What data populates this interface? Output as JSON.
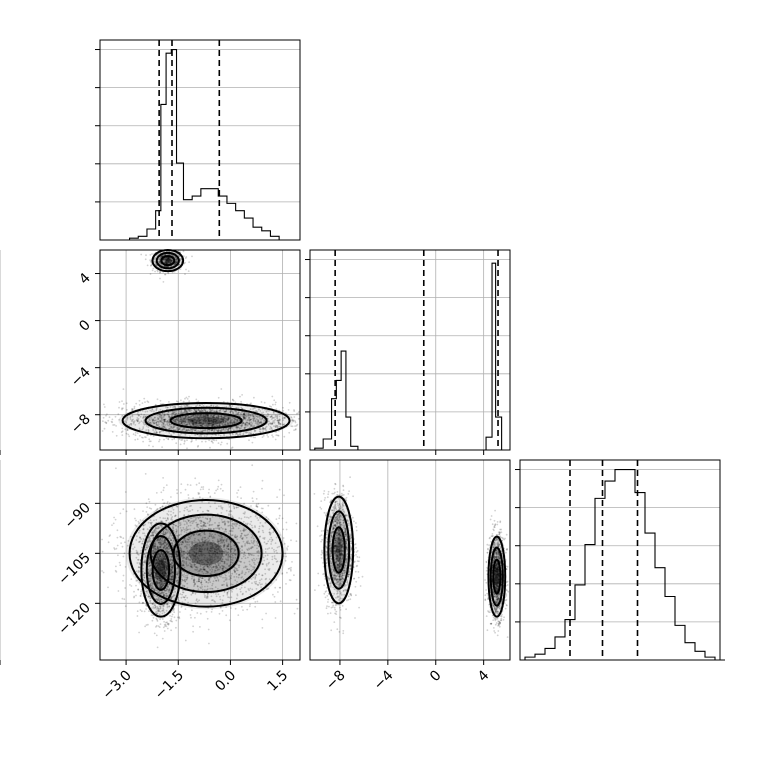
{
  "chart_data": [
    {
      "panel": "hist-1",
      "type": "bar",
      "xlim": [
        -3.75,
        2.0
      ],
      "bins": [
        -2.9,
        -2.65,
        -2.4,
        -2.15,
        -2.0,
        -1.85,
        -1.7,
        -1.55,
        -1.35,
        -1.1,
        -0.85,
        -0.6,
        -0.35,
        -0.1,
        0.15,
        0.4,
        0.65,
        0.9,
        1.15,
        1.4
      ],
      "counts": [
        0.5,
        1,
        3,
        8,
        37,
        51,
        52,
        21,
        11,
        12,
        14,
        14,
        12,
        10,
        8,
        6,
        3.5,
        2.5,
        1,
        0
      ],
      "ymax": 52,
      "quantiles": [
        -2.05,
        -1.68,
        -0.32
      ],
      "grid": true
    },
    {
      "panel": "hist-2",
      "type": "bar",
      "xlim": [
        -10.5,
        6.2
      ],
      "edges": [
        -10.1,
        -9.4,
        -8.7,
        -8.3,
        -7.9,
        -7.5,
        -7.1,
        -6.5,
        -5.8,
        4.2,
        4.7,
        5.0,
        5.5,
        6.2
      ],
      "counts": [
        0.5,
        3,
        14,
        19,
        27,
        9,
        1,
        0,
        0,
        3.5,
        51,
        9,
        0
      ],
      "ymax": 52,
      "quantiles": [
        -8.4,
        -1.0,
        5.2
      ],
      "ticks": [
        -8,
        -4,
        0,
        4
      ],
      "tick_labels": [
        "−8",
        "−4",
        "0",
        "4"
      ],
      "grid": true
    },
    {
      "panel": "hist-3",
      "type": "bar",
      "xlim": [
        -127,
        -87
      ],
      "bins": [
        -126,
        -124,
        -122,
        -120,
        -118,
        -116,
        -114,
        -112,
        -110,
        -108,
        -106,
        -104,
        -102,
        -100,
        -98,
        -96,
        -94,
        -92,
        -90,
        -88
      ],
      "counts": [
        0.5,
        1,
        2,
        4,
        7,
        13,
        20,
        28,
        31,
        33,
        33,
        29,
        22,
        16,
        11,
        6,
        3,
        1.5,
        0.5,
        0
      ],
      "ymax": 33,
      "quantiles": [
        -117,
        -110.5,
        -103.5
      ],
      "ticks": [
        -120,
        -105,
        -90
      ],
      "tick_labels": [
        "−120",
        "−105",
        "−90"
      ],
      "grid": true
    },
    {
      "panel": "scatter-2-vs-1",
      "type": "scatter",
      "xlim": [
        -3.75,
        2.0
      ],
      "ylim": [
        -11.0,
        6.0
      ],
      "x_ticks": [
        -3.0,
        -1.5,
        0.0,
        1.5
      ],
      "y_ticks": [
        -8,
        -4,
        0,
        4
      ],
      "y_tick_labels": [
        "−8",
        "−4",
        "0",
        "4"
      ],
      "clusters": [
        {
          "cx": -1.8,
          "cy": 5.1,
          "sx": 0.22,
          "sy": 0.45,
          "n": 600
        },
        {
          "cx": -0.7,
          "cy": -8.5,
          "sx": 1.2,
          "sy": 0.75,
          "n": 2200
        }
      ],
      "grid": true
    },
    {
      "panel": "scatter-3-vs-1",
      "type": "scatter",
      "xlim": [
        -3.75,
        2.0
      ],
      "ylim": [
        -137,
        -77
      ],
      "x_ticks": [
        -3.0,
        -1.5,
        0.0,
        1.5
      ],
      "x_tick_labels": [
        "−3.0",
        "−1.5",
        "0.0",
        "1.5"
      ],
      "y_ticks": [
        -120,
        -105,
        -90
      ],
      "y_tick_labels": [
        "−120",
        "−105",
        "−90"
      ],
      "clusters": [
        {
          "cx": -2.0,
          "cy": -110,
          "sx": 0.28,
          "sy": 7,
          "n": 1600
        },
        {
          "cx": -0.7,
          "cy": -105,
          "sx": 1.1,
          "sy": 8,
          "n": 2200
        }
      ],
      "grid": true
    },
    {
      "panel": "scatter-3-vs-2",
      "type": "scatter",
      "xlim": [
        -10.5,
        6.2
      ],
      "ylim": [
        -137,
        -77
      ],
      "x_ticks": [
        -8,
        -4,
        0,
        4
      ],
      "x_tick_labels": [
        "−8",
        "−4",
        "0",
        "4"
      ],
      "clusters": [
        {
          "cx": -8.1,
          "cy": -104,
          "sx": 0.6,
          "sy": 8,
          "n": 1400
        },
        {
          "cx": 5.1,
          "cy": -112,
          "sx": 0.35,
          "sy": 6,
          "n": 1400
        }
      ],
      "grid": true
    }
  ]
}
